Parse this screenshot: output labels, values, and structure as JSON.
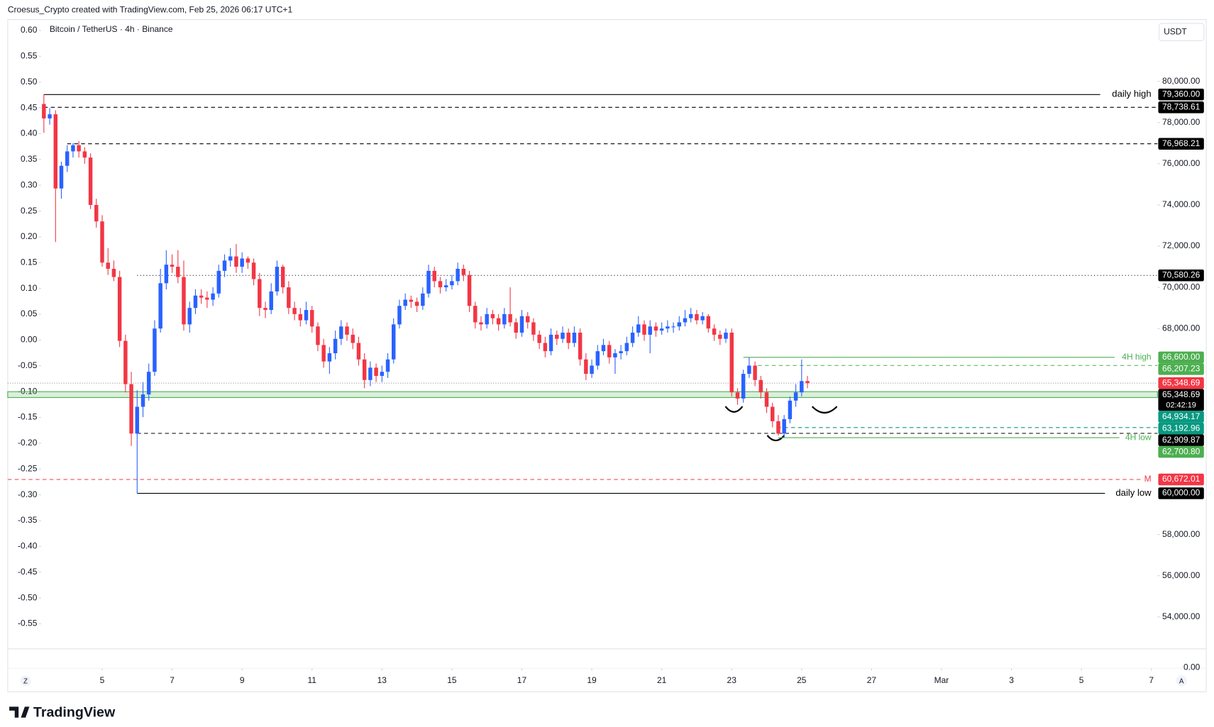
{
  "ui": {
    "header": "Croesus_Crypto created with TradingView.com, Feb 25, 2026 06:17 UTC+1",
    "scale_button": "USDT",
    "left_button": "Z",
    "right_button": "A",
    "logo": "TradingView",
    "lower_pane_label": "0.00"
  },
  "chart_data": {
    "type": "candlestick",
    "title": "Bitcoin / TetherUS · 4h · Binance",
    "up_color": "#2962ff",
    "down_color": "#f23645",
    "x": [
      3.333,
      3.5,
      3.667,
      3.833,
      4,
      4.167,
      4.333,
      4.5,
      4.667,
      4.833,
      5,
      5.167,
      5.333,
      5.5,
      5.667,
      5.833,
      6,
      6.167,
      6.333,
      6.5,
      6.667,
      6.833,
      7,
      7.167,
      7.333,
      7.5,
      7.667,
      7.833,
      8,
      8.167,
      8.333,
      8.5,
      8.667,
      8.833,
      9,
      9.167,
      9.333,
      9.5,
      9.667,
      9.833,
      10,
      10.167,
      10.333,
      10.5,
      10.667,
      10.833,
      11,
      11.167,
      11.333,
      11.5,
      11.667,
      11.833,
      12,
      12.167,
      12.333,
      12.5,
      12.667,
      12.833,
      13,
      13.167,
      13.333,
      13.5,
      13.667,
      13.833,
      14,
      14.167,
      14.333,
      14.5,
      14.667,
      14.833,
      15,
      15.167,
      15.333,
      15.5,
      15.667,
      15.833,
      16,
      16.167,
      16.333,
      16.5,
      16.667,
      16.833,
      17,
      17.167,
      17.333,
      17.5,
      17.667,
      17.833,
      18,
      18.167,
      18.333,
      18.5,
      18.667,
      18.833,
      19,
      19.167,
      19.333,
      19.5,
      19.667,
      19.833,
      20,
      20.167,
      20.333,
      20.5,
      20.667,
      20.833,
      21,
      21.167,
      21.333,
      21.5,
      21.667,
      21.833,
      22,
      22.167,
      22.333,
      22.5,
      22.667,
      22.833,
      23,
      23.167,
      23.333,
      23.5,
      23.667,
      23.833,
      24,
      24.167,
      24.333,
      24.5,
      24.667,
      24.833,
      25,
      25.167
    ],
    "open": [
      78900,
      78200,
      78400,
      74800,
      75900,
      76600,
      76900,
      76600,
      76300,
      74000,
      73200,
      71200,
      70900,
      70500,
      67400,
      65300,
      62900,
      64200,
      64800,
      65900,
      68000,
      70200,
      71100,
      71000,
      70500,
      68200,
      69000,
      69600,
      69500,
      69400,
      69700,
      70800,
      71300,
      71500,
      71000,
      71400,
      71200,
      70400,
      69000,
      68900,
      69800,
      71000,
      70000,
      69000,
      68700,
      68400,
      68900,
      68100,
      67200,
      66400,
      66800,
      67500,
      68100,
      67700,
      67300,
      66500,
      65500,
      66100,
      65700,
      65900,
      66500,
      68200,
      69100,
      69400,
      69300,
      69100,
      69700,
      70800,
      70300,
      70000,
      70100,
      70300,
      70900,
      70600,
      69100,
      68300,
      68200,
      68700,
      68500,
      68200,
      68700,
      68300,
      67800,
      68600,
      68300,
      67700,
      67300,
      66900,
      67700,
      67500,
      67800,
      67300,
      67800,
      66500,
      65800,
      66200,
      66900,
      67200,
      66600,
      66800,
      66900,
      67300,
      67800,
      68200,
      67700,
      68100,
      67900,
      68000,
      68100,
      68100,
      68300,
      68500,
      68700,
      68400,
      68600,
      68000,
      67700,
      67500,
      67800,
      64900,
      64600,
      65800,
      66200,
      65500,
      64900,
      64200,
      63500,
      62900,
      63600,
      64500,
      64900,
      65450
    ],
    "high": [
      79360,
      78700,
      78600,
      76100,
      76900,
      77000,
      77100,
      76800,
      76500,
      74300,
      73500,
      71900,
      71300,
      70800,
      67700,
      65900,
      65000,
      65400,
      66300,
      68400,
      70900,
      71800,
      71600,
      71800,
      71300,
      69300,
      69900,
      69900,
      69800,
      70000,
      71100,
      71600,
      71900,
      72100,
      71700,
      71500,
      71400,
      70700,
      69300,
      70200,
      71300,
      71100,
      70300,
      69300,
      69000,
      69300,
      69100,
      68300,
      67500,
      67100,
      67900,
      68400,
      68300,
      68000,
      67600,
      66800,
      66400,
      66300,
      66200,
      66800,
      68500,
      69400,
      69700,
      69600,
      69500,
      70000,
      71100,
      71000,
      70500,
      70400,
      70600,
      71200,
      71100,
      70800,
      69300,
      68600,
      69000,
      68900,
      68700,
      69000,
      70000,
      68500,
      68900,
      68800,
      68500,
      67900,
      67600,
      68000,
      67900,
      68100,
      68000,
      68100,
      68000,
      66800,
      66500,
      67200,
      67500,
      67400,
      67000,
      67200,
      67600,
      68100,
      68600,
      68400,
      68400,
      68300,
      68300,
      68400,
      68300,
      68600,
      68900,
      69000,
      68900,
      68800,
      68700,
      68200,
      67900,
      68000,
      68000,
      65100,
      66000,
      66600,
      66400,
      65700,
      65100,
      64400,
      63800,
      63800,
      64700,
      65300,
      66500,
      65700
    ],
    "low": [
      77500,
      77900,
      72200,
      74300,
      75600,
      76300,
      76300,
      76000,
      73800,
      72900,
      71000,
      70600,
      70300,
      67100,
      64900,
      62300,
      60000,
      63700,
      64500,
      65700,
      67800,
      69900,
      70700,
      70200,
      67900,
      67800,
      68700,
      69200,
      69000,
      69100,
      69500,
      70500,
      71000,
      70700,
      70700,
      70900,
      70100,
      68600,
      68500,
      68700,
      69600,
      69700,
      68700,
      68400,
      68100,
      68200,
      67800,
      66900,
      66100,
      65800,
      66500,
      67200,
      67400,
      67000,
      66200,
      65100,
      65200,
      65400,
      65400,
      65600,
      66300,
      68000,
      68900,
      69000,
      68800,
      68900,
      69500,
      70000,
      69700,
      69800,
      69900,
      70100,
      70300,
      68800,
      68000,
      67900,
      68000,
      68200,
      67900,
      68000,
      68100,
      67500,
      67600,
      68000,
      67400,
      67000,
      66600,
      66700,
      67200,
      67300,
      67000,
      67100,
      66200,
      65500,
      65600,
      66000,
      66700,
      66300,
      65800,
      66500,
      66700,
      67100,
      67600,
      67400,
      66800,
      67600,
      67700,
      67800,
      67800,
      67900,
      68100,
      68300,
      68200,
      68200,
      67800,
      67400,
      67200,
      67300,
      64700,
      64300,
      64400,
      65600,
      65200,
      64600,
      63900,
      63200,
      62800,
      62700,
      63400,
      64200,
      64700,
      65100
    ],
    "close": [
      78200,
      78400,
      74800,
      75900,
      76600,
      76900,
      76600,
      76300,
      74000,
      73200,
      71200,
      70900,
      70500,
      67400,
      65300,
      62900,
      64200,
      64800,
      65900,
      68000,
      70200,
      71100,
      71000,
      70500,
      68200,
      69000,
      69600,
      69500,
      69400,
      69700,
      70800,
      71300,
      71500,
      71000,
      71400,
      71200,
      70400,
      69000,
      68900,
      69800,
      71000,
      70000,
      69000,
      68700,
      68400,
      68900,
      68100,
      67200,
      66400,
      66800,
      67500,
      68100,
      67700,
      67300,
      66500,
      65500,
      66100,
      65700,
      65900,
      66500,
      68200,
      69100,
      69400,
      69300,
      69100,
      69700,
      70800,
      70300,
      70000,
      70100,
      70300,
      70900,
      70600,
      69100,
      68300,
      68200,
      68700,
      68500,
      68200,
      68700,
      68300,
      67800,
      68600,
      68300,
      67700,
      67300,
      66900,
      67700,
      67500,
      67800,
      67300,
      67800,
      66500,
      65800,
      66200,
      66900,
      67200,
      66600,
      66800,
      66900,
      67300,
      67800,
      68200,
      67700,
      68100,
      67900,
      68000,
      68100,
      68100,
      68300,
      68500,
      68700,
      68400,
      68600,
      68000,
      67700,
      67500,
      67800,
      64900,
      64600,
      65800,
      66200,
      65500,
      64900,
      64200,
      63500,
      62900,
      63600,
      64500,
      64900,
      65450,
      65348.69
    ],
    "xlim": [
      2.3,
      35.175
    ],
    "xticks": [
      5,
      7,
      9,
      11,
      13,
      15,
      17,
      19,
      21,
      23,
      25,
      27,
      {
        "value": 29,
        "label": "Mar"
      },
      {
        "value": 31,
        "label": "3"
      },
      {
        "value": 33,
        "label": "5"
      },
      {
        "value": 35,
        "label": "7"
      }
    ],
    "ylim": [
      52450,
      83000
    ],
    "yticks": [
      {
        "value": 80000,
        "label": "80,000.00"
      },
      {
        "value": 78000,
        "label": "78,000.00"
      },
      {
        "value": 76000,
        "label": "76,000.00"
      },
      {
        "value": 74000,
        "label": "74,000.00"
      },
      {
        "value": 72000,
        "label": "72,000.00"
      },
      {
        "value": 70000,
        "label": "70,000.00"
      },
      {
        "value": 68000,
        "label": "68,000.00"
      },
      {
        "value": 58000,
        "label": "58,000.00"
      },
      {
        "value": 56000,
        "label": "56,000.00"
      },
      {
        "value": 54000,
        "label": "54,000.00"
      }
    ],
    "y2lim": [
      -0.5985,
      0.6212
    ],
    "y2ticks": [
      {
        "value": 0.6,
        "label": "0.60"
      },
      {
        "value": 0.55,
        "label": "0.55"
      },
      {
        "value": 0.5,
        "label": "0.50"
      },
      {
        "value": 0.45,
        "label": "0.45"
      },
      {
        "value": 0.4,
        "label": "0.40"
      },
      {
        "value": 0.35,
        "label": "0.35"
      },
      {
        "value": 0.3,
        "label": "0.30"
      },
      {
        "value": 0.25,
        "label": "0.25"
      },
      {
        "value": 0.2,
        "label": "0.20"
      },
      {
        "value": 0.15,
        "label": "0.15"
      },
      {
        "value": 0.1,
        "label": "0.10"
      },
      {
        "value": 0.05,
        "label": "0.05"
      },
      {
        "value": 0,
        "label": "0.00"
      },
      {
        "value": -0.05,
        "label": "-0.05"
      },
      {
        "value": -0.1,
        "label": "-0.10"
      },
      {
        "value": -0.15,
        "label": "-0.15"
      },
      {
        "value": -0.2,
        "label": "-0.20"
      },
      {
        "value": -0.25,
        "label": "-0.25"
      },
      {
        "value": -0.3,
        "label": "-0.30"
      },
      {
        "value": -0.35,
        "label": "-0.35"
      },
      {
        "value": -0.4,
        "label": "-0.40"
      },
      {
        "value": -0.45,
        "label": "-0.45"
      },
      {
        "value": -0.5,
        "label": "-0.50"
      },
      {
        "value": -0.55,
        "label": "-0.55"
      }
    ],
    "levels": [
      {
        "price": 79360,
        "label": "79,360.00",
        "text": "daily high",
        "line": "solid",
        "color": "#000000",
        "tag_color": "#000000",
        "start": 3.333
      },
      {
        "price": 78738.61,
        "label": "78,738.61",
        "line": "dashed",
        "color": "#000000",
        "tag_color": "#000000",
        "start": 3.333
      },
      {
        "price": 76968.21,
        "label": "76,968.21",
        "line": "dashed",
        "color": "#000000",
        "tag_color": "#000000",
        "start": 4
      },
      {
        "price": 70580.26,
        "label": "70,580.26",
        "line": "dotted",
        "color": "#000000",
        "tag_color": "#000000",
        "start": 6
      },
      {
        "price": 66600,
        "label": "66,600.00",
        "text": "4H high",
        "line": "solid",
        "color": "#4caf50",
        "tag_color": "#4caf50",
        "start": 23.333
      },
      {
        "price": 66207.23,
        "label": "66,207.23",
        "line": "dashed",
        "color": "#4caf50",
        "tag_color": "#4caf50",
        "start": 23.75
      },
      {
        "price": 65348.69,
        "label": "65,348.69",
        "line": "none",
        "color": "#f23645",
        "tag_color": "#f23645"
      },
      {
        "price": 64934.17,
        "label": "64,934.17",
        "line": "zone",
        "zone_lower": 64650,
        "color": "#4caf50",
        "tag_color": "#089981",
        "start": 2.3
      },
      {
        "price": 63192.96,
        "label": "63,192.96",
        "line": "dashed",
        "color": "#089981",
        "tag_color": "#089981",
        "start": 24.3
      },
      {
        "price": 62909.87,
        "label": "62,909.87",
        "line": "dashed",
        "color": "#000000",
        "tag_color": "#000000",
        "start": 6
      },
      {
        "price": 62700.8,
        "label": "62,700.80",
        "text": "4H low",
        "line": "solid",
        "color": "#4caf50",
        "tag_color": "#4caf50",
        "start": 24.333
      },
      {
        "price": 60672.01,
        "label": "60,672.01",
        "text": "M",
        "line": "dashed",
        "color": "#f23645",
        "tag_color": "#f23645",
        "start": 2.3
      },
      {
        "price": 60000,
        "label": "60,000.00",
        "text": "daily low",
        "line": "solid",
        "color": "#000000",
        "tag_color": "#000000",
        "start": 6
      }
    ],
    "last_price": {
      "price": 65348.69,
      "label": "65,348.69",
      "countdown": "02:42:19",
      "color": "#000000"
    }
  }
}
